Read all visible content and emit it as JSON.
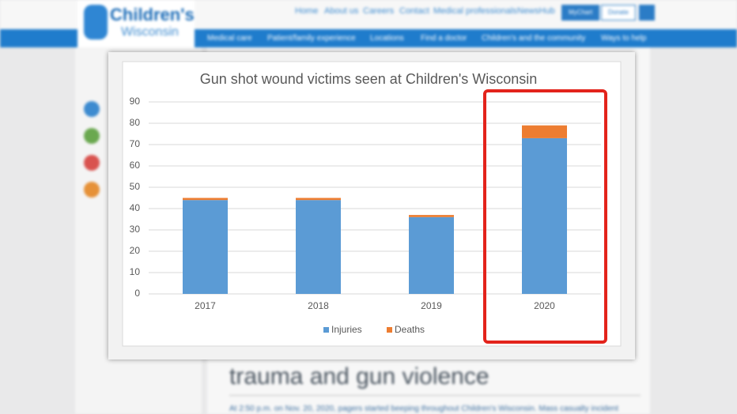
{
  "background": {
    "logo": [
      "Children's",
      "Wisconsin"
    ],
    "top_links": [
      "Home",
      "About us",
      "Careers",
      "Contact",
      "Medical professionals",
      "NewsHub"
    ],
    "buttons": [
      "MyChart",
      "Donate"
    ],
    "nav": [
      "Medical care",
      "Patient/family experience",
      "Locations",
      "Find a doctor",
      "Children's and the community",
      "Ways to help"
    ],
    "headline": "trauma and gun violence",
    "body": "At 2:50 p.m. on Nov. 20, 2020, pagers started beeping throughout Children's Wisconsin. Mass casualty incident"
  },
  "chart_data": {
    "type": "stacked-bar",
    "title": "Gun shot wound victims seen at Children's Wisconsin",
    "categories": [
      "2017",
      "2018",
      "2019",
      "2020"
    ],
    "series": [
      {
        "name": "Injuries",
        "color": "#5b9bd5",
        "values": [
          44,
          44,
          36,
          73
        ]
      },
      {
        "name": "Deaths",
        "color": "#ed7d31",
        "values": [
          1,
          1,
          1,
          6
        ]
      }
    ],
    "ylim": [
      0,
      90
    ],
    "yticks": [
      0,
      10,
      20,
      30,
      40,
      50,
      60,
      70,
      80,
      90
    ],
    "grid": true,
    "legend": "bottom"
  }
}
